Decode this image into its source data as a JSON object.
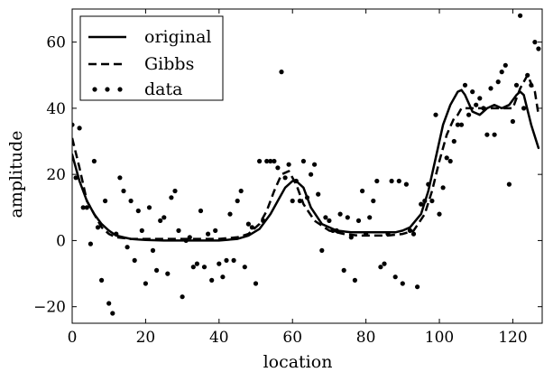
{
  "chart_data": {
    "type": "line",
    "xlabel": "location",
    "ylabel": "amplitude",
    "xlim": [
      0,
      128
    ],
    "ylim": [
      -25,
      70
    ],
    "xticks": [
      0,
      20,
      40,
      60,
      80,
      100,
      120
    ],
    "yticks": [
      -20,
      0,
      20,
      40,
      60
    ],
    "xtick_labels": [
      "0",
      "20",
      "40",
      "60",
      "80",
      "100",
      "120"
    ],
    "ytick_labels": [
      "−20",
      "0",
      "20",
      "40",
      "60"
    ],
    "legend_position": "top-left",
    "grid": false,
    "series": [
      {
        "name": "original",
        "style": "solid",
        "x": [
          0,
          2,
          4,
          6,
          8,
          10,
          12,
          14,
          16,
          18,
          20,
          25,
          30,
          35,
          40,
          45,
          48,
          51,
          54,
          56,
          58,
          60,
          61,
          63,
          65,
          68,
          72,
          76,
          80,
          84,
          88,
          90,
          92,
          95,
          97,
          99,
          101,
          103,
          105,
          106,
          107,
          109,
          111,
          113,
          115,
          117,
          119,
          121,
          122,
          123,
          125,
          127
        ],
        "y": [
          26,
          18,
          12,
          8,
          5,
          3,
          1.5,
          1,
          0.5,
          0.3,
          0.2,
          0,
          0,
          0,
          0,
          0.5,
          1.5,
          3.5,
          8,
          12,
          16,
          18,
          18,
          16,
          10,
          5,
          3,
          2.5,
          2.5,
          2.5,
          2.5,
          3,
          4,
          8,
          15,
          25,
          35,
          41,
          45,
          45.5,
          44,
          39,
          38,
          40,
          41,
          40,
          41,
          44,
          45,
          44,
          35,
          28
        ]
      },
      {
        "name": "Gibbs",
        "style": "dashed",
        "x": [
          0,
          2,
          4,
          6,
          8,
          10,
          12,
          16,
          20,
          25,
          30,
          35,
          40,
          45,
          48,
          51,
          53,
          55,
          57,
          59,
          61,
          63,
          66,
          70,
          74,
          78,
          82,
          86,
          90,
          93,
          96,
          98,
          100,
          102,
          104,
          105,
          106,
          108,
          110,
          112,
          114,
          116,
          118,
          120,
          122,
          124,
          126,
          127
        ],
        "y": [
          31,
          22,
          12,
          8,
          4,
          2,
          1,
          0.5,
          0.5,
          0.5,
          0.5,
          0.5,
          0.5,
          1,
          2,
          5,
          9,
          15,
          20,
          21,
          17,
          11,
          6,
          3,
          2,
          1.5,
          1.5,
          1.5,
          2,
          3,
          8,
          15,
          24,
          32,
          37,
          38,
          40,
          40,
          40,
          40,
          40,
          40,
          40,
          40,
          46,
          50,
          45,
          38
        ]
      },
      {
        "name": "data",
        "style": "dots",
        "x": [
          0,
          1,
          2,
          3,
          4,
          5,
          6,
          7,
          8,
          9,
          10,
          11,
          12,
          13,
          14,
          15,
          16,
          17,
          18,
          19,
          20,
          21,
          22,
          23,
          24,
          25,
          26,
          27,
          28,
          29,
          30,
          31,
          32,
          33,
          34,
          35,
          36,
          37,
          38,
          39,
          40,
          41,
          42,
          43,
          44,
          45,
          46,
          47,
          48,
          49,
          50,
          51,
          52,
          53,
          54,
          55,
          56,
          57,
          58,
          59,
          60,
          61,
          62,
          63,
          64,
          65,
          66,
          67,
          68,
          69,
          70,
          71,
          72,
          73,
          74,
          75,
          76,
          77,
          78,
          79,
          80,
          81,
          82,
          83,
          84,
          85,
          86,
          87,
          88,
          89,
          90,
          91,
          92,
          93,
          94,
          95,
          96,
          97,
          98,
          99,
          100,
          101,
          102,
          103,
          104,
          105,
          106,
          107,
          108,
          109,
          110,
          111,
          112,
          113,
          114,
          115,
          116,
          117,
          118,
          119,
          120,
          121,
          122,
          123,
          124,
          125,
          126,
          127
        ],
        "y": [
          35,
          19,
          34,
          10,
          10,
          -1,
          24,
          4,
          -12,
          12,
          -19,
          -22,
          2,
          19,
          15,
          -2,
          12,
          -6,
          9,
          3,
          -13,
          10,
          -3,
          -9,
          6,
          7,
          -10,
          13,
          15,
          3,
          -17,
          0,
          1,
          -8,
          -7,
          9,
          -8,
          2,
          -12,
          3,
          -7,
          -11,
          -6,
          8,
          -6,
          12,
          15,
          -8,
          5,
          4,
          -13,
          24,
          6,
          24,
          24,
          24,
          22,
          51,
          19,
          23,
          12,
          18,
          12,
          24,
          13,
          20,
          23,
          14,
          -3,
          7,
          6,
          3,
          3,
          8,
          -9,
          7,
          1,
          -12,
          6,
          15,
          2,
          7,
          12,
          18,
          -8,
          -7,
          2,
          18,
          -11,
          18,
          -13,
          17,
          3,
          2,
          -14,
          11,
          12,
          17,
          12,
          38,
          8,
          16,
          25,
          24,
          30,
          35,
          35,
          47,
          38,
          45,
          41,
          43,
          40,
          32,
          46,
          32,
          48,
          51,
          53,
          17,
          36,
          47,
          68,
          40,
          50,
          47,
          60,
          58
        ]
      }
    ]
  }
}
